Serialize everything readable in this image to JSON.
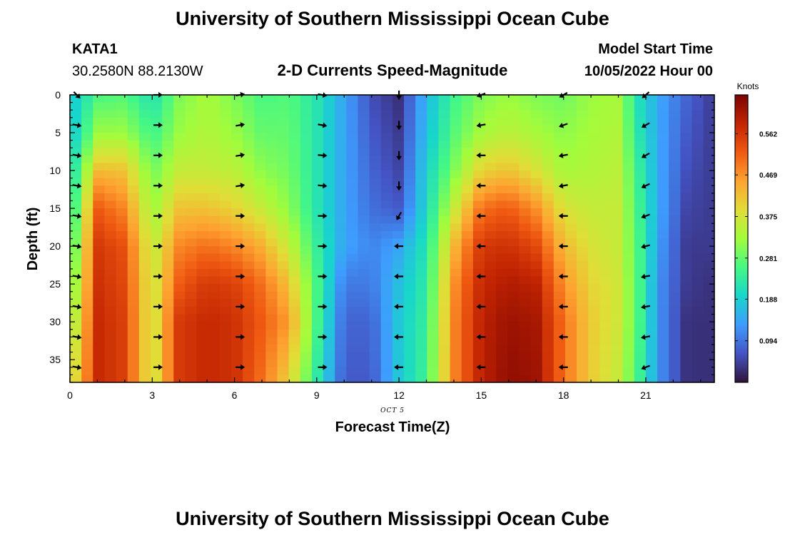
{
  "chart_data": {
    "type": "heatmap",
    "title": "University of Southern Mississippi Ocean Cube",
    "subtitle": "2-D Currents Speed-Magnitude",
    "station": "KATA1",
    "coordinates": "30.2580N  88.2130W",
    "model_start_label": "Model Start Time",
    "model_start_value": "10/05/2022 Hour 00",
    "footer_title": "University of Southern Mississippi Ocean Cube",
    "xlabel": "Forecast Time(Z)",
    "ylabel": "Depth (ft)",
    "date_annotation": "OCT 5",
    "x_ticks": [
      0,
      3,
      6,
      9,
      12,
      15,
      18,
      21
    ],
    "y_ticks": [
      0,
      5,
      10,
      15,
      20,
      25,
      30,
      35
    ],
    "xlim": [
      0,
      23.5
    ],
    "ylim": [
      0,
      38
    ],
    "colorbar": {
      "unit": "Knots",
      "range": [
        0.0,
        0.65
      ],
      "ticks": [
        0.094,
        0.188,
        0.281,
        0.375,
        0.469,
        0.562
      ],
      "tick_labels": [
        "0.094",
        "0.188",
        "0.281",
        "0.375",
        "0.469",
        "0.562"
      ],
      "colors": [
        "#30123b",
        "#4454c4",
        "#3e9cfe",
        "#18d6cb",
        "#46f884",
        "#a2fc3c",
        "#e1dd37",
        "#fea331",
        "#ef5911",
        "#c22402",
        "#7a0403"
      ]
    },
    "speed_profiles": [
      {
        "hour": 0.25,
        "values": [
          [
            0,
            0.19
          ],
          [
            5,
            0.2
          ],
          [
            10,
            0.24
          ],
          [
            15,
            0.27
          ],
          [
            20,
            0.3
          ],
          [
            25,
            0.33
          ],
          [
            30,
            0.36
          ],
          [
            38,
            0.4
          ]
        ]
      },
      {
        "hour": 1.0,
        "values": [
          [
            0,
            0.26
          ],
          [
            5,
            0.32
          ],
          [
            8,
            0.38
          ],
          [
            11,
            0.45
          ],
          [
            15,
            0.52
          ],
          [
            20,
            0.56
          ],
          [
            30,
            0.58
          ],
          [
            38,
            0.58
          ]
        ]
      },
      {
        "hour": 2.0,
        "values": [
          [
            0,
            0.27
          ],
          [
            5,
            0.32
          ],
          [
            10,
            0.42
          ],
          [
            15,
            0.48
          ],
          [
            20,
            0.53
          ],
          [
            30,
            0.55
          ],
          [
            38,
            0.55
          ]
        ]
      },
      {
        "hour": 3.0,
        "values": [
          [
            0,
            0.21
          ],
          [
            5,
            0.25
          ],
          [
            10,
            0.29
          ],
          [
            15,
            0.32
          ],
          [
            20,
            0.35
          ],
          [
            25,
            0.36
          ],
          [
            38,
            0.36
          ]
        ]
      },
      {
        "hour": 4.0,
        "values": [
          [
            0,
            0.3
          ],
          [
            5,
            0.32
          ],
          [
            10,
            0.36
          ],
          [
            15,
            0.42
          ],
          [
            20,
            0.48
          ],
          [
            25,
            0.52
          ],
          [
            30,
            0.56
          ],
          [
            38,
            0.56
          ]
        ]
      },
      {
        "hour": 5.0,
        "values": [
          [
            0,
            0.33
          ],
          [
            5,
            0.34
          ],
          [
            10,
            0.36
          ],
          [
            15,
            0.42
          ],
          [
            20,
            0.5
          ],
          [
            25,
            0.56
          ],
          [
            30,
            0.58
          ],
          [
            38,
            0.58
          ]
        ]
      },
      {
        "hour": 6.0,
        "values": [
          [
            0,
            0.3
          ],
          [
            5,
            0.32
          ],
          [
            10,
            0.35
          ],
          [
            15,
            0.4
          ],
          [
            20,
            0.48
          ],
          [
            25,
            0.55
          ],
          [
            30,
            0.57
          ],
          [
            38,
            0.57
          ]
        ]
      },
      {
        "hour": 7.0,
        "values": [
          [
            0,
            0.26
          ],
          [
            5,
            0.28
          ],
          [
            10,
            0.31
          ],
          [
            15,
            0.36
          ],
          [
            20,
            0.44
          ],
          [
            25,
            0.5
          ],
          [
            30,
            0.52
          ],
          [
            38,
            0.5
          ]
        ]
      },
      {
        "hour": 8.0,
        "values": [
          [
            0,
            0.27
          ],
          [
            5,
            0.28
          ],
          [
            10,
            0.29
          ],
          [
            15,
            0.31
          ],
          [
            20,
            0.36
          ],
          [
            25,
            0.42
          ],
          [
            30,
            0.46
          ],
          [
            38,
            0.4
          ]
        ]
      },
      {
        "hour": 9.0,
        "values": [
          [
            0,
            0.22
          ],
          [
            5,
            0.22
          ],
          [
            10,
            0.22
          ],
          [
            15,
            0.22
          ],
          [
            20,
            0.24
          ],
          [
            25,
            0.26
          ],
          [
            30,
            0.26
          ],
          [
            38,
            0.23
          ]
        ]
      },
      {
        "hour": 10.0,
        "values": [
          [
            0,
            0.14
          ],
          [
            5,
            0.14
          ],
          [
            10,
            0.14
          ],
          [
            15,
            0.14
          ],
          [
            20,
            0.14
          ],
          [
            25,
            0.1
          ],
          [
            30,
            0.08
          ],
          [
            38,
            0.07
          ]
        ]
      },
      {
        "hour": 11.0,
        "values": [
          [
            0,
            0.06
          ],
          [
            5,
            0.07
          ],
          [
            10,
            0.08
          ],
          [
            15,
            0.09
          ],
          [
            20,
            0.11
          ],
          [
            25,
            0.1
          ],
          [
            30,
            0.08
          ],
          [
            38,
            0.07
          ]
        ]
      },
      {
        "hour": 12.0,
        "values": [
          [
            0,
            0.03
          ],
          [
            5,
            0.04
          ],
          [
            10,
            0.05
          ],
          [
            15,
            0.07
          ],
          [
            20,
            0.14
          ],
          [
            25,
            0.17
          ],
          [
            30,
            0.18
          ],
          [
            38,
            0.18
          ]
        ]
      },
      {
        "hour": 13.0,
        "values": [
          [
            0,
            0.16
          ],
          [
            5,
            0.17
          ],
          [
            10,
            0.19
          ],
          [
            15,
            0.2
          ],
          [
            20,
            0.22
          ],
          [
            25,
            0.23
          ],
          [
            30,
            0.24
          ],
          [
            38,
            0.25
          ]
        ]
      },
      {
        "hour": 14.0,
        "values": [
          [
            0,
            0.25
          ],
          [
            5,
            0.27
          ],
          [
            10,
            0.3
          ],
          [
            15,
            0.36
          ],
          [
            20,
            0.43
          ],
          [
            25,
            0.47
          ],
          [
            30,
            0.48
          ],
          [
            38,
            0.48
          ]
        ]
      },
      {
        "hour": 15.0,
        "values": [
          [
            0,
            0.3
          ],
          [
            5,
            0.33
          ],
          [
            10,
            0.4
          ],
          [
            15,
            0.5
          ],
          [
            20,
            0.56
          ],
          [
            25,
            0.58
          ],
          [
            30,
            0.59
          ],
          [
            38,
            0.59
          ]
        ]
      },
      {
        "hour": 16.0,
        "values": [
          [
            0,
            0.32
          ],
          [
            5,
            0.35
          ],
          [
            10,
            0.42
          ],
          [
            15,
            0.52
          ],
          [
            20,
            0.57
          ],
          [
            25,
            0.6
          ],
          [
            30,
            0.62
          ],
          [
            38,
            0.63
          ]
        ]
      },
      {
        "hour": 17.0,
        "values": [
          [
            0,
            0.3
          ],
          [
            5,
            0.33
          ],
          [
            10,
            0.38
          ],
          [
            15,
            0.47
          ],
          [
            20,
            0.54
          ],
          [
            25,
            0.59
          ],
          [
            30,
            0.61
          ],
          [
            38,
            0.62
          ]
        ]
      },
      {
        "hour": 18.0,
        "values": [
          [
            0,
            0.29
          ],
          [
            5,
            0.31
          ],
          [
            10,
            0.33
          ],
          [
            15,
            0.38
          ],
          [
            20,
            0.43
          ],
          [
            25,
            0.47
          ],
          [
            30,
            0.5
          ],
          [
            38,
            0.5
          ]
        ]
      },
      {
        "hour": 19.0,
        "values": [
          [
            0,
            0.32
          ],
          [
            5,
            0.33
          ],
          [
            10,
            0.34
          ],
          [
            15,
            0.36
          ],
          [
            20,
            0.38
          ],
          [
            25,
            0.4
          ],
          [
            30,
            0.41
          ],
          [
            38,
            0.41
          ]
        ]
      },
      {
        "hour": 20.0,
        "values": [
          [
            0,
            0.33
          ],
          [
            5,
            0.34
          ],
          [
            10,
            0.35
          ],
          [
            15,
            0.36
          ],
          [
            20,
            0.36
          ],
          [
            25,
            0.37
          ],
          [
            30,
            0.37
          ],
          [
            38,
            0.36
          ]
        ]
      },
      {
        "hour": 20.75,
        "values": [
          [
            0,
            0.21
          ],
          [
            5,
            0.22
          ],
          [
            10,
            0.24
          ],
          [
            15,
            0.25
          ],
          [
            20,
            0.26
          ],
          [
            25,
            0.26
          ],
          [
            30,
            0.26
          ],
          [
            38,
            0.25
          ]
        ]
      },
      {
        "hour": 21.5,
        "values": [
          [
            0,
            0.14
          ],
          [
            5,
            0.14
          ],
          [
            10,
            0.14
          ],
          [
            15,
            0.14
          ],
          [
            20,
            0.13
          ],
          [
            25,
            0.12
          ],
          [
            30,
            0.12
          ],
          [
            38,
            0.12
          ]
        ]
      },
      {
        "hour": 22.5,
        "values": [
          [
            0,
            0.08
          ],
          [
            5,
            0.07
          ],
          [
            10,
            0.06
          ],
          [
            15,
            0.05
          ],
          [
            20,
            0.04
          ],
          [
            25,
            0.04
          ],
          [
            30,
            0.03
          ],
          [
            38,
            0.03
          ]
        ]
      },
      {
        "hour": 23.5,
        "values": [
          [
            0,
            0.04
          ],
          [
            5,
            0.04
          ],
          [
            10,
            0.04
          ],
          [
            15,
            0.04
          ],
          [
            20,
            0.04
          ],
          [
            25,
            0.03
          ],
          [
            30,
            0.03
          ],
          [
            38,
            0.03
          ]
        ]
      }
    ],
    "vectors": [
      {
        "hour": 0.25,
        "direction_deg": [
          135,
          100,
          100,
          100,
          100,
          100,
          100,
          100,
          100,
          100
        ]
      },
      {
        "hour": 3.2,
        "direction_deg": [
          90,
          90,
          90,
          90,
          90,
          90,
          90,
          90,
          90,
          90
        ]
      },
      {
        "hour": 6.2,
        "direction_deg": [
          80,
          80,
          80,
          80,
          90,
          90,
          90,
          90,
          90,
          90
        ]
      },
      {
        "hour": 9.2,
        "direction_deg": [
          100,
          100,
          95,
          95,
          90,
          90,
          90,
          90,
          90,
          90
        ]
      },
      {
        "hour": 12.0,
        "direction_deg": [
          180,
          180,
          180,
          180,
          210,
          270,
          270,
          270,
          270,
          270
        ]
      },
      {
        "hour": 15.0,
        "direction_deg": [
          250,
          260,
          270,
          270,
          270,
          270,
          270,
          270,
          270,
          270
        ]
      },
      {
        "hour": 18.0,
        "direction_deg": [
          240,
          250,
          260,
          260,
          270,
          270,
          270,
          270,
          270,
          270
        ]
      },
      {
        "hour": 21.0,
        "direction_deg": [
          230,
          240,
          240,
          245,
          250,
          255,
          260,
          260,
          260,
          250
        ]
      }
    ],
    "vector_depths": [
      0,
      4,
      8,
      12,
      16,
      20,
      24,
      28,
      32,
      36
    ]
  }
}
